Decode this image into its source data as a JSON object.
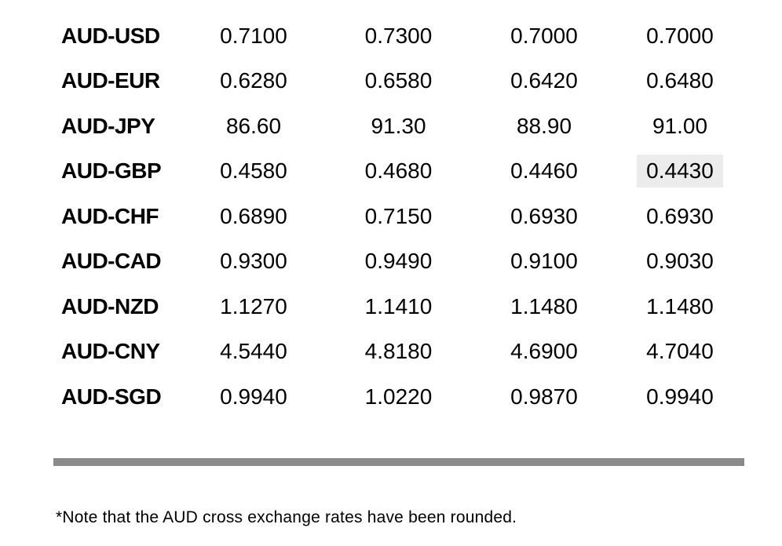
{
  "table": {
    "rows": [
      {
        "pair": "AUD-USD",
        "values": [
          "0.7100",
          "0.7300",
          "0.7000",
          "0.7000"
        ],
        "highlight_col": -1
      },
      {
        "pair": "AUD-EUR",
        "values": [
          "0.6280",
          "0.6580",
          "0.6420",
          "0.6480"
        ],
        "highlight_col": -1
      },
      {
        "pair": "AUD-JPY",
        "values": [
          "86.60",
          "91.30",
          "88.90",
          "91.00"
        ],
        "highlight_col": -1
      },
      {
        "pair": "AUD-GBP",
        "values": [
          "0.4580",
          "0.4680",
          "0.4460",
          "0.4430"
        ],
        "highlight_col": 3
      },
      {
        "pair": "AUD-CHF",
        "values": [
          "0.6890",
          "0.7150",
          "0.6930",
          "0.6930"
        ],
        "highlight_col": -1
      },
      {
        "pair": "AUD-CAD",
        "values": [
          "0.9300",
          "0.9490",
          "0.9100",
          "0.9030"
        ],
        "highlight_col": -1
      },
      {
        "pair": "AUD-NZD",
        "values": [
          "1.1270",
          "1.1410",
          "1.1480",
          "1.1480"
        ],
        "highlight_col": -1
      },
      {
        "pair": "AUD-CNY",
        "values": [
          "4.5440",
          "4.8180",
          "4.6900",
          "4.7040"
        ],
        "highlight_col": -1
      },
      {
        "pair": "AUD-SGD",
        "values": [
          "0.9940",
          "1.0220",
          "0.9870",
          "0.9940"
        ],
        "highlight_col": -1
      }
    ]
  },
  "footnote": "*Note that the AUD cross exchange rates have been rounded.",
  "colors": {
    "background": "#ffffff",
    "text": "#000000",
    "divider": "#8a8a8a",
    "highlight": "#ececec"
  }
}
